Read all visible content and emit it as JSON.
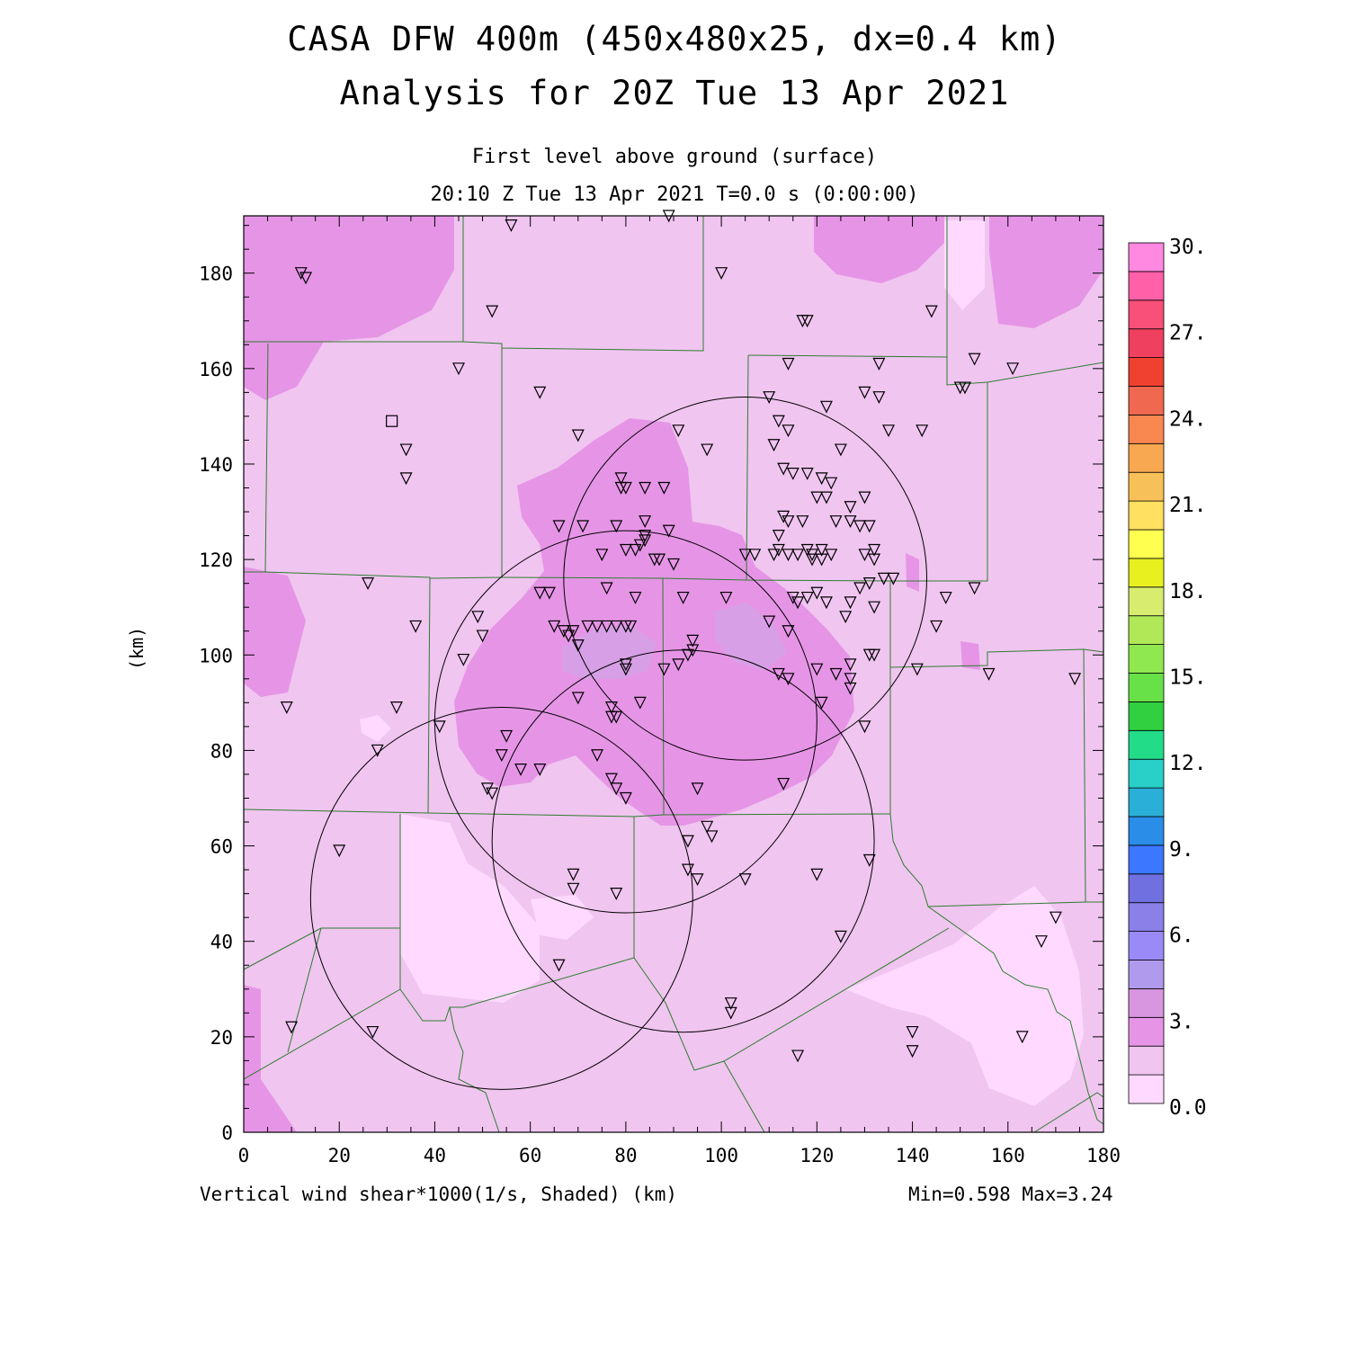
{
  "title": {
    "line1": "CASA DFW 400m (450x480x25, dx=0.4 km)",
    "line2": "Analysis for 20Z Tue 13 Apr 2021"
  },
  "subtitle": {
    "line1": "First level above ground (surface)",
    "line2": "20:10 Z Tue 13 Apr 2021   T=0.0 s (0:00:00)"
  },
  "footer": {
    "left": "Vertical wind shear*1000(1/s, Shaded)  (km)",
    "right": "Min=0.598 Max=3.24"
  },
  "axes": {
    "xlim": [
      0,
      180
    ],
    "ylim": [
      0,
      192
    ],
    "x_ticks": [
      "0",
      "20",
      "40",
      "60",
      "80",
      "100",
      "120",
      "140",
      "160",
      "180"
    ],
    "y_ticks": [
      "0",
      "20",
      "40",
      "60",
      "80",
      "100",
      "120",
      "140",
      "160",
      "180"
    ],
    "ylabel": "(km)"
  },
  "colorbar": {
    "labels": [
      "30.",
      "27.",
      "24.",
      "21.",
      "18.",
      "15.",
      "12.",
      "9.",
      "6.",
      "3.",
      "0.0"
    ],
    "colors": [
      "#ffd9ff",
      "#f0c5f0",
      "#e695e6",
      "#d895e0",
      "#b09aee",
      "#9a8af8",
      "#8a80e8",
      "#7070e0",
      "#3c78ff",
      "#2a8ee8",
      "#2ab0d8",
      "#28d0c8",
      "#22dc88",
      "#30d040",
      "#68e048",
      "#90e850",
      "#b0e858",
      "#d8ec70",
      "#e8f020",
      "#ffff50",
      "#ffe060",
      "#f8c058",
      "#f8a850",
      "#f88850",
      "#f06850",
      "#f04030",
      "#f04060",
      "#f85078",
      "#ff60a8",
      "#ff88e0"
    ]
  },
  "map": {
    "base_color": "#f0c5f0",
    "low_color": "#ffd9ff",
    "mid_color": "#e695e6",
    "high_color": "#d7a0e6"
  },
  "stations": [
    [
      12,
      180
    ],
    [
      13,
      179
    ],
    [
      56,
      190
    ],
    [
      89,
      192
    ],
    [
      100,
      180
    ],
    [
      52,
      172
    ],
    [
      118,
      170
    ],
    [
      117,
      170
    ],
    [
      45,
      160
    ],
    [
      122,
      152
    ],
    [
      114,
      161
    ],
    [
      133,
      161
    ],
    [
      150,
      156
    ],
    [
      151,
      156
    ],
    [
      153,
      162
    ],
    [
      161,
      160
    ],
    [
      62,
      155
    ],
    [
      110,
      154
    ],
    [
      130,
      155
    ],
    [
      133,
      154
    ],
    [
      144,
      172
    ],
    [
      135,
      147
    ],
    [
      142,
      147
    ],
    [
      125,
      143
    ],
    [
      111,
      144
    ],
    [
      112,
      149
    ],
    [
      114,
      147
    ],
    [
      91,
      147
    ],
    [
      97,
      143
    ],
    [
      70,
      146
    ],
    [
      34,
      143
    ],
    [
      34,
      137
    ],
    [
      79,
      137
    ],
    [
      79,
      135
    ],
    [
      80,
      135
    ],
    [
      84,
      135
    ],
    [
      88,
      135
    ],
    [
      113,
      139
    ],
    [
      115,
      138
    ],
    [
      118,
      138
    ],
    [
      121,
      137
    ],
    [
      123,
      136
    ],
    [
      120,
      133
    ],
    [
      122,
      133
    ],
    [
      124,
      128
    ],
    [
      127,
      131
    ],
    [
      130,
      133
    ],
    [
      127,
      128
    ],
    [
      129,
      127
    ],
    [
      131,
      127
    ],
    [
      66,
      127
    ],
    [
      71,
      127
    ],
    [
      78,
      127
    ],
    [
      84,
      128
    ],
    [
      89,
      126
    ],
    [
      113,
      129
    ],
    [
      114,
      128
    ],
    [
      117,
      128
    ],
    [
      112,
      125
    ],
    [
      84,
      125
    ],
    [
      84,
      124
    ],
    [
      83,
      123
    ],
    [
      80,
      122
    ],
    [
      82,
      122
    ],
    [
      86,
      120
    ],
    [
      87,
      120
    ],
    [
      90,
      119
    ],
    [
      75,
      121
    ],
    [
      105,
      121
    ],
    [
      107,
      121
    ],
    [
      111,
      121
    ],
    [
      112,
      122
    ],
    [
      114,
      121
    ],
    [
      116,
      121
    ],
    [
      118,
      122
    ],
    [
      119,
      121
    ],
    [
      121,
      122
    ],
    [
      123,
      121
    ],
    [
      121,
      120
    ],
    [
      119,
      120
    ],
    [
      130,
      121
    ],
    [
      132,
      122
    ],
    [
      132,
      120
    ],
    [
      134,
      116
    ],
    [
      136,
      116
    ],
    [
      131,
      115
    ],
    [
      129,
      114
    ],
    [
      64,
      113
    ],
    [
      62,
      113
    ],
    [
      76,
      114
    ],
    [
      82,
      112
    ],
    [
      92,
      112
    ],
    [
      101,
      112
    ],
    [
      115,
      112
    ],
    [
      118,
      112
    ],
    [
      116,
      111
    ],
    [
      120,
      113
    ],
    [
      122,
      111
    ],
    [
      127,
      111
    ],
    [
      126,
      108
    ],
    [
      132,
      110
    ],
    [
      147,
      112
    ],
    [
      153,
      114
    ],
    [
      65,
      106
    ],
    [
      67,
      105
    ],
    [
      69,
      105
    ],
    [
      72,
      106
    ],
    [
      74,
      106
    ],
    [
      78,
      106
    ],
    [
      81,
      106
    ],
    [
      76,
      106
    ],
    [
      68,
      104
    ],
    [
      70,
      102
    ],
    [
      80,
      106
    ],
    [
      110,
      107
    ],
    [
      114,
      105
    ],
    [
      94,
      103
    ],
    [
      94,
      101
    ],
    [
      93,
      100
    ],
    [
      91,
      98
    ],
    [
      88,
      97
    ],
    [
      80,
      98
    ],
    [
      80,
      97
    ],
    [
      112,
      96
    ],
    [
      114,
      95
    ],
    [
      120,
      97
    ],
    [
      124,
      96
    ],
    [
      127,
      98
    ],
    [
      127,
      95
    ],
    [
      127,
      93
    ],
    [
      131,
      100
    ],
    [
      132,
      100
    ],
    [
      141,
      97
    ],
    [
      145,
      106
    ],
    [
      156,
      96
    ],
    [
      36,
      106
    ],
    [
      49,
      108
    ],
    [
      50,
      104
    ],
    [
      46,
      99
    ],
    [
      26,
      115
    ],
    [
      9,
      89
    ],
    [
      32,
      89
    ],
    [
      28,
      80
    ],
    [
      41,
      85
    ],
    [
      70,
      91
    ],
    [
      77,
      89
    ],
    [
      77,
      87
    ],
    [
      78,
      87
    ],
    [
      83,
      90
    ],
    [
      121,
      90
    ],
    [
      130,
      85
    ],
    [
      55,
      83
    ],
    [
      54,
      79
    ],
    [
      58,
      76
    ],
    [
      62,
      76
    ],
    [
      74,
      79
    ],
    [
      77,
      74
    ],
    [
      78,
      72
    ],
    [
      80,
      70
    ],
    [
      51,
      72
    ],
    [
      52,
      71
    ],
    [
      95,
      72
    ],
    [
      113,
      73
    ],
    [
      97,
      64
    ],
    [
      98,
      62
    ],
    [
      93,
      61
    ],
    [
      20,
      59
    ],
    [
      69,
      54
    ],
    [
      69,
      51
    ],
    [
      78,
      50
    ],
    [
      93,
      55
    ],
    [
      95,
      53
    ],
    [
      105,
      53
    ],
    [
      120,
      54
    ],
    [
      131,
      57
    ],
    [
      174,
      95
    ],
    [
      170,
      45
    ],
    [
      167,
      40
    ],
    [
      125,
      41
    ],
    [
      66,
      35
    ],
    [
      102,
      27
    ],
    [
      102,
      25
    ],
    [
      116,
      16
    ],
    [
      140,
      21
    ],
    [
      140,
      17
    ],
    [
      163,
      20
    ],
    [
      10,
      22
    ],
    [
      27,
      21
    ]
  ],
  "squares": [
    [
      31,
      149
    ]
  ],
  "circles": [
    [
      105,
      116,
      38
    ],
    [
      80,
      86,
      40
    ],
    [
      92,
      61,
      40
    ],
    [
      54,
      49,
      40
    ]
  ]
}
